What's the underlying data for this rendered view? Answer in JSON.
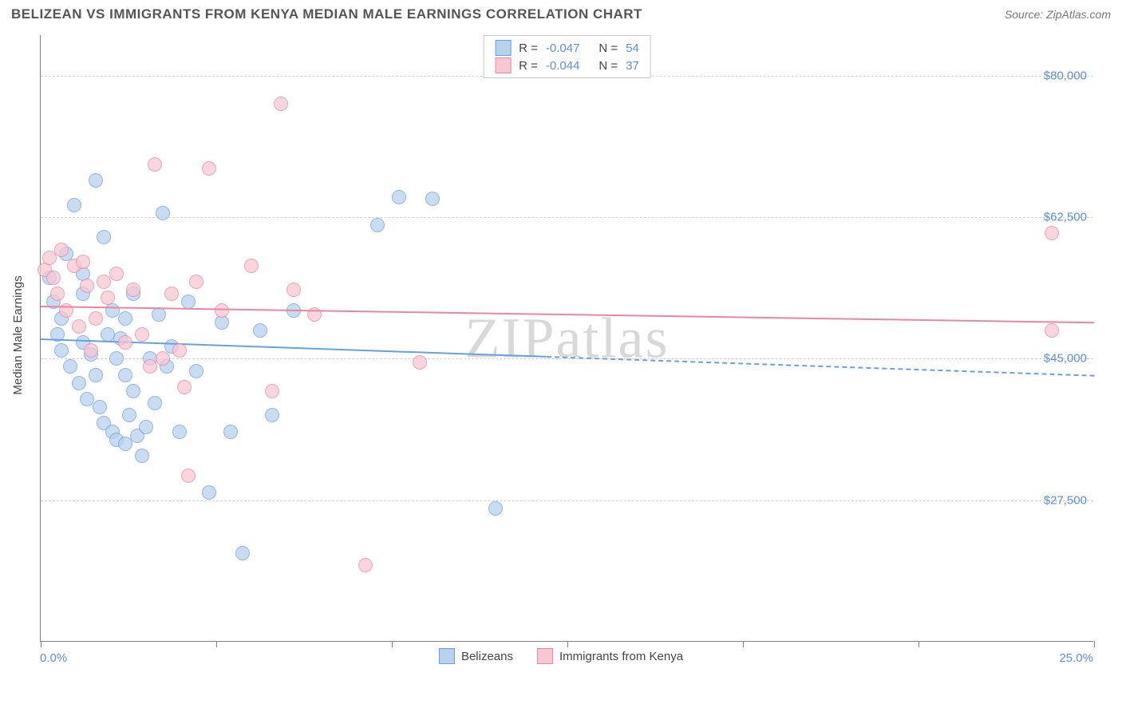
{
  "title": "BELIZEAN VS IMMIGRANTS FROM KENYA MEDIAN MALE EARNINGS CORRELATION CHART",
  "source": "Source: ZipAtlas.com",
  "axis_title": "Median Male Earnings",
  "watermark": "ZIPatlas",
  "x_axis": {
    "min": 0,
    "max": 25,
    "label_min": "0.0%",
    "label_max": "25.0%",
    "ticks": [
      0,
      4.17,
      8.33,
      12.5,
      16.67,
      20.83,
      25
    ]
  },
  "y_axis": {
    "min": 10000,
    "max": 85000,
    "gridlines": [
      {
        "value": 27500,
        "label": "$27,500"
      },
      {
        "value": 45000,
        "label": "$45,000"
      },
      {
        "value": 62500,
        "label": "$62,500"
      },
      {
        "value": 80000,
        "label": "$80,000"
      }
    ]
  },
  "series": [
    {
      "name": "Belizeans",
      "fill": "#b7d1ee",
      "stroke": "#6aa0dd",
      "r_value": "-0.047",
      "n_value": "54",
      "trend": {
        "y_start": 47500,
        "y_end": 43000,
        "solid_until_x": 12.0
      },
      "points": [
        {
          "x": 0.2,
          "y": 55000
        },
        {
          "x": 0.3,
          "y": 52000
        },
        {
          "x": 0.5,
          "y": 50000
        },
        {
          "x": 0.5,
          "y": 46000
        },
        {
          "x": 0.6,
          "y": 58000
        },
        {
          "x": 0.7,
          "y": 44000
        },
        {
          "x": 0.8,
          "y": 64000
        },
        {
          "x": 0.9,
          "y": 42000
        },
        {
          "x": 1.0,
          "y": 55500
        },
        {
          "x": 1.0,
          "y": 47000
        },
        {
          "x": 1.1,
          "y": 40000
        },
        {
          "x": 1.2,
          "y": 45500
        },
        {
          "x": 1.3,
          "y": 43000
        },
        {
          "x": 1.3,
          "y": 67000
        },
        {
          "x": 1.4,
          "y": 39000
        },
        {
          "x": 1.5,
          "y": 60000
        },
        {
          "x": 1.5,
          "y": 37000
        },
        {
          "x": 1.6,
          "y": 48000
        },
        {
          "x": 1.7,
          "y": 36000
        },
        {
          "x": 1.8,
          "y": 35000
        },
        {
          "x": 1.8,
          "y": 45000
        },
        {
          "x": 1.9,
          "y": 47500
        },
        {
          "x": 2.0,
          "y": 34500
        },
        {
          "x": 2.0,
          "y": 50000
        },
        {
          "x": 2.1,
          "y": 38000
        },
        {
          "x": 2.2,
          "y": 41000
        },
        {
          "x": 2.3,
          "y": 35500
        },
        {
          "x": 2.4,
          "y": 33000
        },
        {
          "x": 2.5,
          "y": 36500
        },
        {
          "x": 2.6,
          "y": 45000
        },
        {
          "x": 2.7,
          "y": 39500
        },
        {
          "x": 2.8,
          "y": 50500
        },
        {
          "x": 2.9,
          "y": 63000
        },
        {
          "x": 3.0,
          "y": 44000
        },
        {
          "x": 3.1,
          "y": 46500
        },
        {
          "x": 3.3,
          "y": 36000
        },
        {
          "x": 3.5,
          "y": 52000
        },
        {
          "x": 3.7,
          "y": 43500
        },
        {
          "x": 4.0,
          "y": 28500
        },
        {
          "x": 4.3,
          "y": 49500
        },
        {
          "x": 4.5,
          "y": 36000
        },
        {
          "x": 4.8,
          "y": 21000
        },
        {
          "x": 5.2,
          "y": 48500
        },
        {
          "x": 5.5,
          "y": 38000
        },
        {
          "x": 6.0,
          "y": 51000
        },
        {
          "x": 8.0,
          "y": 61500
        },
        {
          "x": 8.5,
          "y": 65000
        },
        {
          "x": 9.3,
          "y": 64800
        },
        {
          "x": 10.8,
          "y": 26500
        },
        {
          "x": 1.0,
          "y": 53000
        },
        {
          "x": 1.7,
          "y": 51000
        },
        {
          "x": 2.2,
          "y": 53000
        },
        {
          "x": 0.4,
          "y": 48000
        },
        {
          "x": 2.0,
          "y": 43000
        }
      ]
    },
    {
      "name": "Immigrants from Kenya",
      "fill": "#f7c7d2",
      "stroke": "#e887a2",
      "r_value": "-0.044",
      "n_value": "37",
      "trend": {
        "y_start": 51500,
        "y_end": 49500,
        "solid_until_x": 25.0
      },
      "points": [
        {
          "x": 0.1,
          "y": 56000
        },
        {
          "x": 0.2,
          "y": 57500
        },
        {
          "x": 0.3,
          "y": 55000
        },
        {
          "x": 0.4,
          "y": 53000
        },
        {
          "x": 0.5,
          "y": 58500
        },
        {
          "x": 0.6,
          "y": 51000
        },
        {
          "x": 0.8,
          "y": 56500
        },
        {
          "x": 0.9,
          "y": 49000
        },
        {
          "x": 1.0,
          "y": 57000
        },
        {
          "x": 1.1,
          "y": 54000
        },
        {
          "x": 1.3,
          "y": 50000
        },
        {
          "x": 1.5,
          "y": 54500
        },
        {
          "x": 1.6,
          "y": 52500
        },
        {
          "x": 1.8,
          "y": 55500
        },
        {
          "x": 2.0,
          "y": 47000
        },
        {
          "x": 2.2,
          "y": 53500
        },
        {
          "x": 2.4,
          "y": 48000
        },
        {
          "x": 2.6,
          "y": 44000
        },
        {
          "x": 2.7,
          "y": 69000
        },
        {
          "x": 2.9,
          "y": 45000
        },
        {
          "x": 3.1,
          "y": 53000
        },
        {
          "x": 3.3,
          "y": 46000
        },
        {
          "x": 3.4,
          "y": 41500
        },
        {
          "x": 3.5,
          "y": 30500
        },
        {
          "x": 3.7,
          "y": 54500
        },
        {
          "x": 4.0,
          "y": 68500
        },
        {
          "x": 4.3,
          "y": 51000
        },
        {
          "x": 5.0,
          "y": 56500
        },
        {
          "x": 5.5,
          "y": 41000
        },
        {
          "x": 5.7,
          "y": 76500
        },
        {
          "x": 6.0,
          "y": 53500
        },
        {
          "x": 6.5,
          "y": 50500
        },
        {
          "x": 7.7,
          "y": 19500
        },
        {
          "x": 9.0,
          "y": 44500
        },
        {
          "x": 24.0,
          "y": 60500
        },
        {
          "x": 24.0,
          "y": 48500
        },
        {
          "x": 1.2,
          "y": 46000
        }
      ]
    }
  ]
}
